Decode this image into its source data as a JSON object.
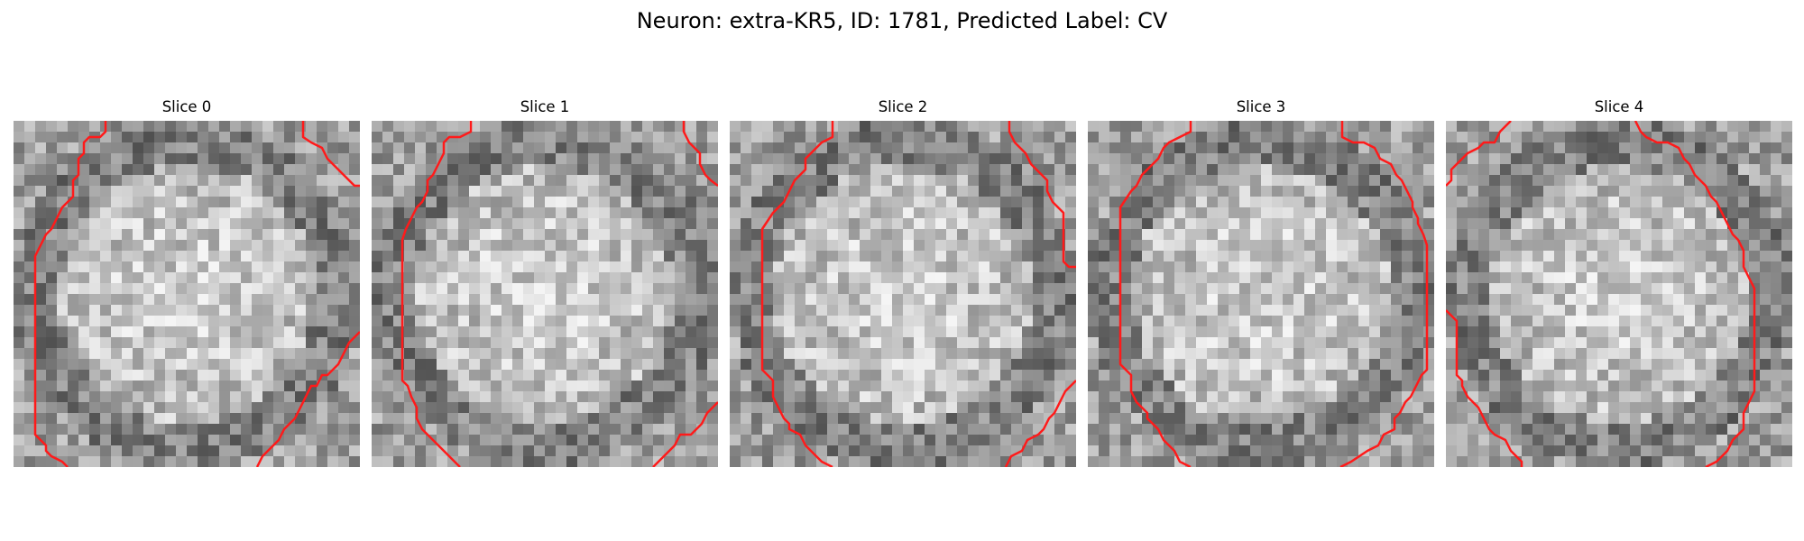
{
  "figure": {
    "title": "Neuron: extra-KR5, ID: 1781, Predicted Label: CV"
  },
  "panels": [
    {
      "title": "Slice 0"
    },
    {
      "title": "Slice 1"
    },
    {
      "title": "Slice 2"
    },
    {
      "title": "Slice 3"
    },
    {
      "title": "Slice 4"
    }
  ],
  "colors": {
    "contour": "#ff1a1a",
    "background": "#ffffff"
  }
}
